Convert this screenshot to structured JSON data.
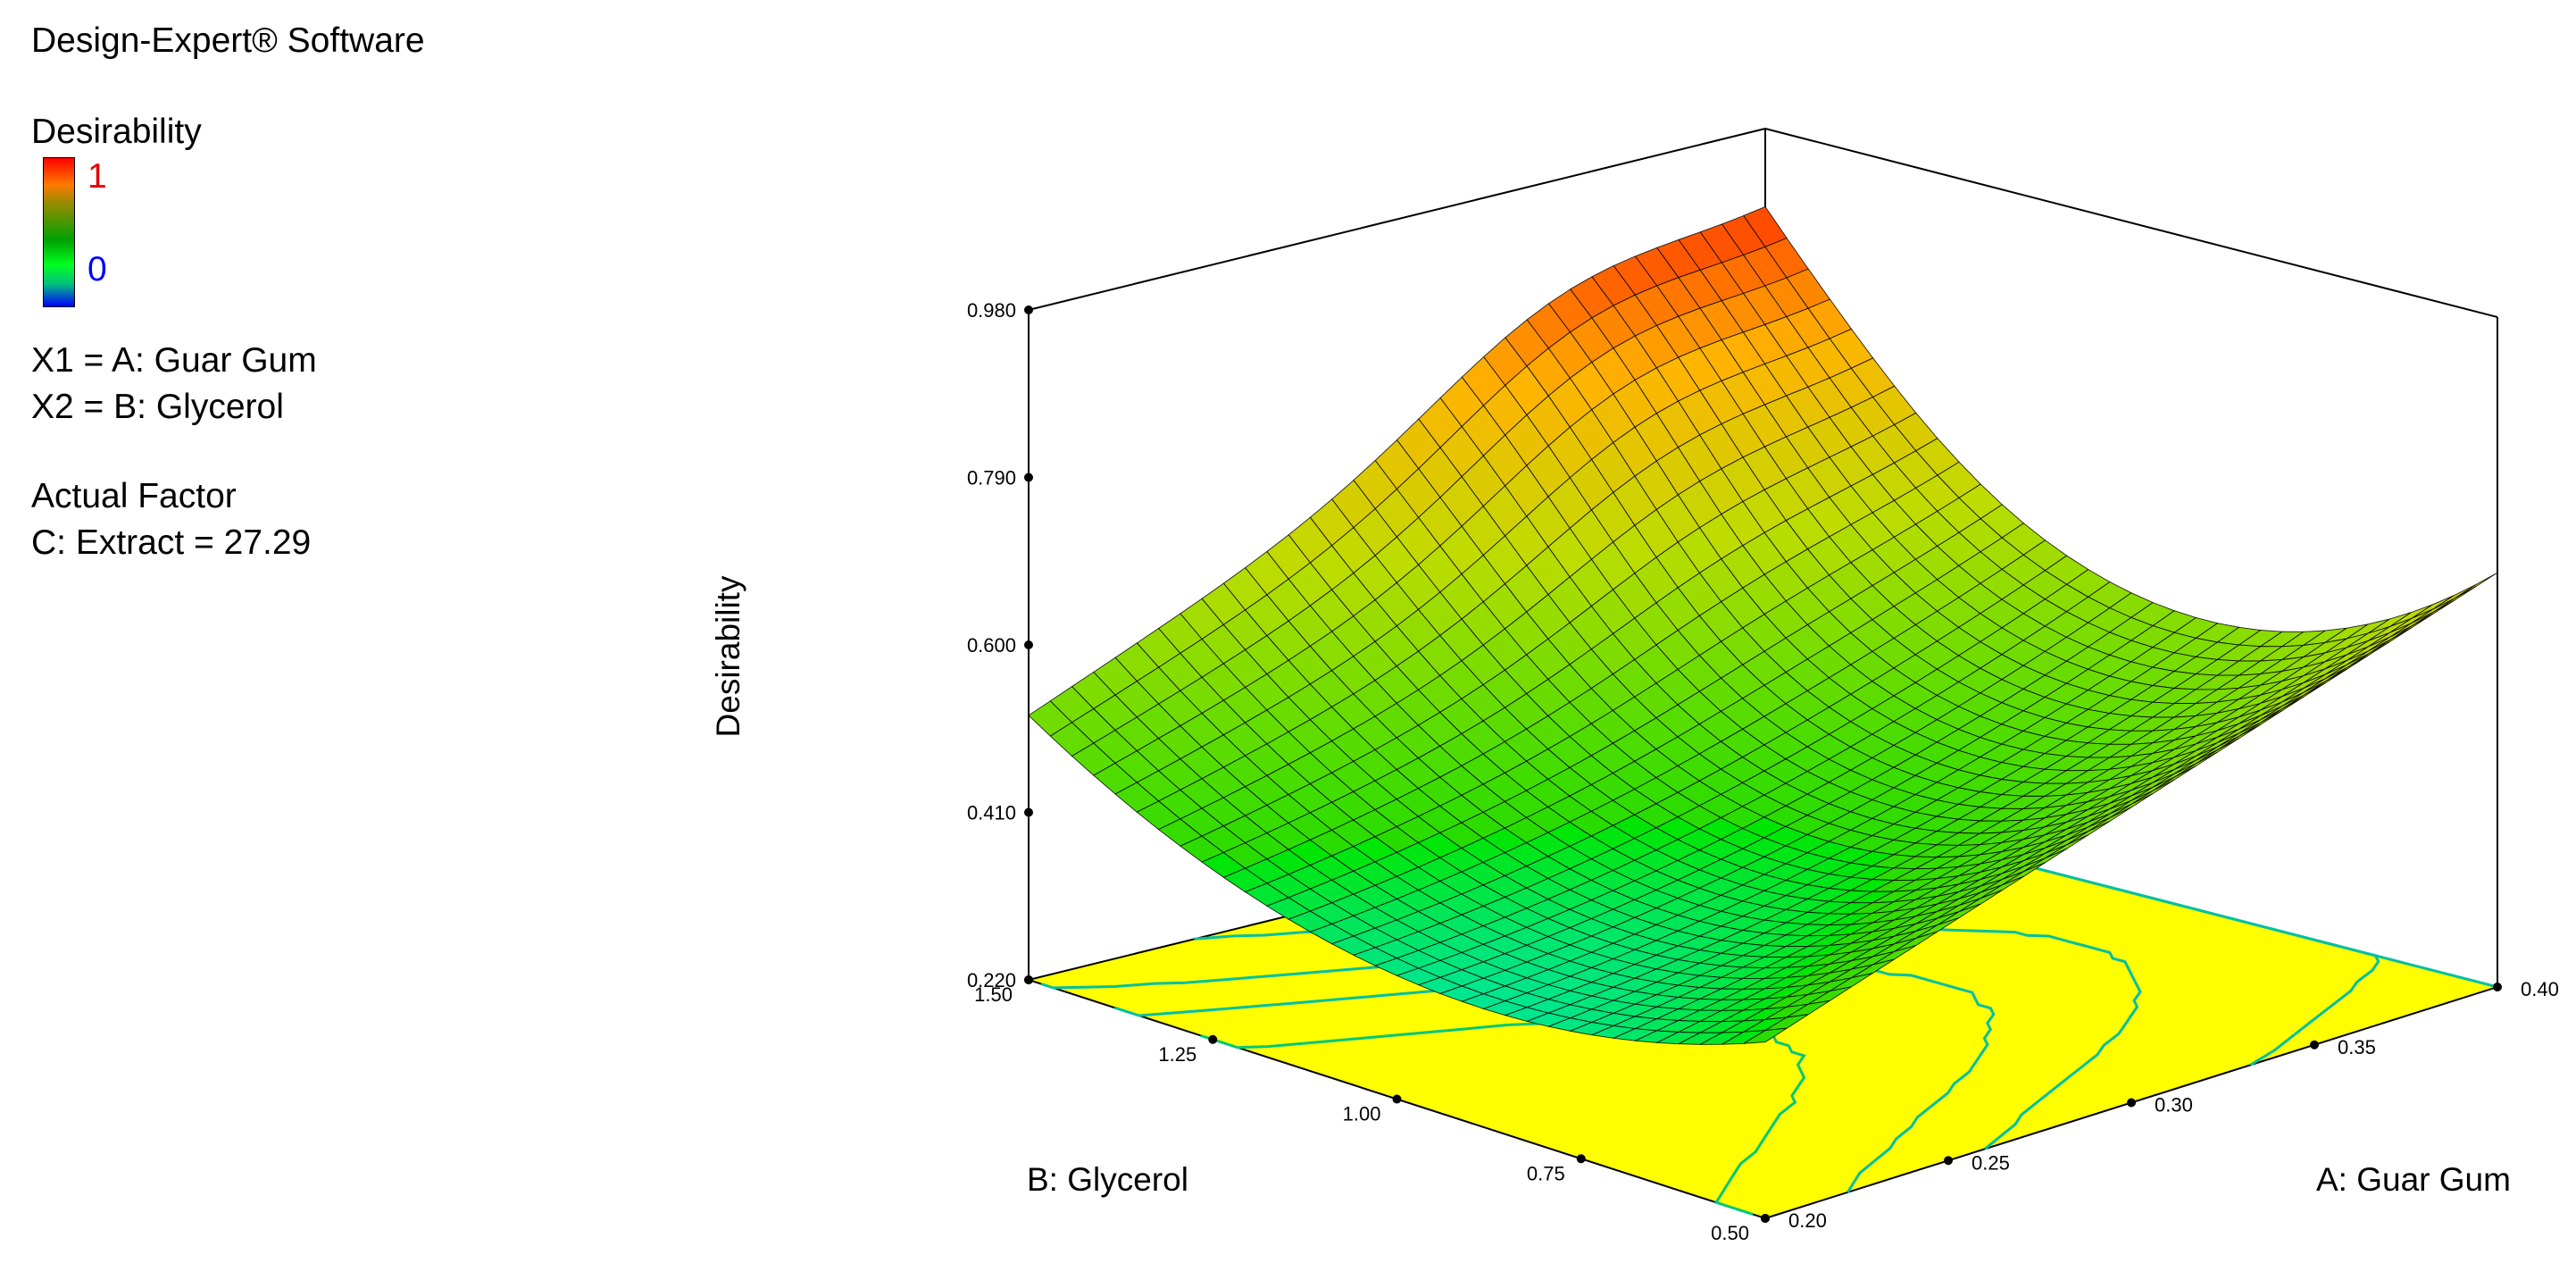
{
  "header": {
    "software": "Design-Expert® Software",
    "response_title": "Desirability",
    "scale_high": "1",
    "scale_low": "0",
    "x1": "X1 = A: Guar Gum",
    "x2": "X2 = B: Glycerol",
    "actual_factor_title": "Actual Factor",
    "actual_factor_value": "C: Extract = 27.29"
  },
  "colors": {
    "scale_high": "#ff0000",
    "scale_low": "#0000ff",
    "contour_plane": "#ffff00",
    "contour_lines": "#00c0a0"
  },
  "chart_data": {
    "type": "surface3d",
    "title": "",
    "zlabel": "Desirability",
    "xlabel": "A: Guar Gum",
    "ylabel": "B: Glycerol",
    "x_range": [
      0.2,
      0.4
    ],
    "y_range": [
      0.5,
      1.5
    ],
    "z_range": [
      0.22,
      0.98
    ],
    "x_ticks": [
      "0.20",
      "0.25",
      "0.30",
      "0.35",
      "0.40"
    ],
    "y_ticks": [
      "0.50",
      "0.75",
      "1.00",
      "1.25",
      "1.50"
    ],
    "z_ticks": [
      "0.220",
      "0.410",
      "0.600",
      "0.790",
      "0.980"
    ],
    "corner_values": {
      "A0.20_B0.50": 0.42,
      "A0.40_B0.50": 0.69,
      "A0.20_B1.50": 0.52,
      "A0.40_B1.50": 0.87
    },
    "maximum": {
      "A": 0.4,
      "B": 1.5,
      "desirability": 0.87
    },
    "minimum_region": {
      "A": 0.2,
      "B": 1.0,
      "desirability": 0.36
    },
    "projected_contours": true
  }
}
